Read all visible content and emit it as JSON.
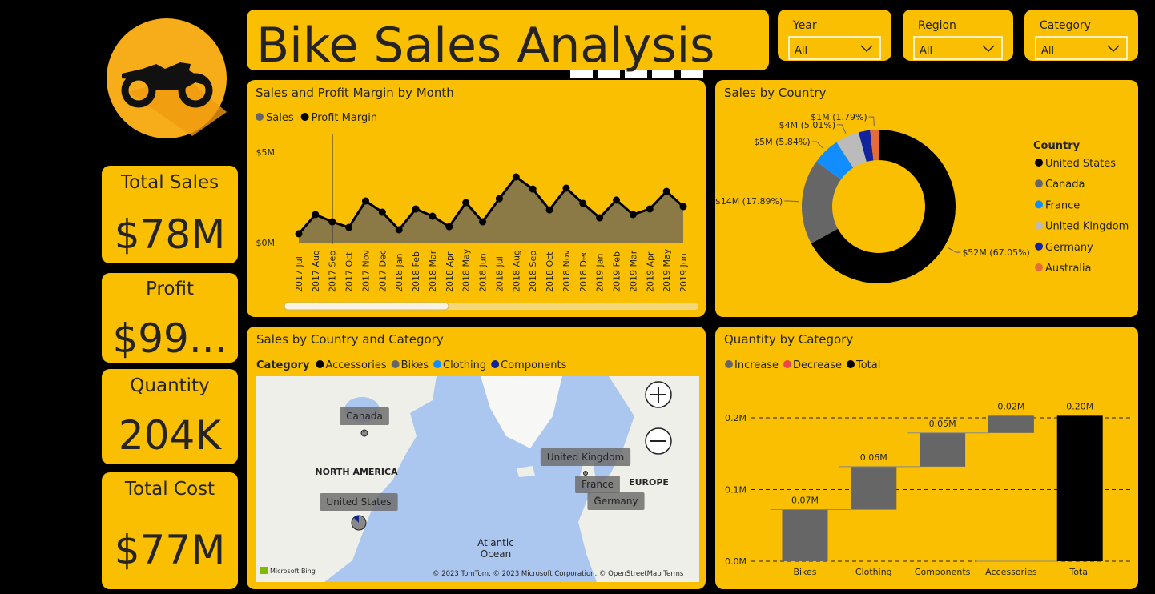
{
  "header": {
    "title": "Bike Sales Analysis"
  },
  "slicers": [
    {
      "label": "Year",
      "value": "All"
    },
    {
      "label": "Region",
      "value": "All"
    },
    {
      "label": "Category",
      "value": "All"
    }
  ],
  "kpis": [
    {
      "label": "Total Sales",
      "value": "$78M"
    },
    {
      "label": "Profit",
      "value": "$99..."
    },
    {
      "label": "Quantity",
      "value": "204K"
    },
    {
      "label": "Total Cost",
      "value": "$77M"
    }
  ],
  "chart_data": [
    {
      "type": "area",
      "title": "Sales and Profit Margin by Month",
      "categories": [
        "2017 Jul",
        "2017 Aug",
        "2017 Sep",
        "2017 Oct",
        "2017 Nov",
        "2017 Dec",
        "2018 Jan",
        "2018 Feb",
        "2018 Mar",
        "2018 Apr",
        "2018 May",
        "2018 Jun",
        "2018 Jul",
        "2018 Aug",
        "2018 Sep",
        "2018 Oct",
        "2018 Nov",
        "2018 Dec",
        "2019 Jan",
        "2019 Feb",
        "2019 Mar",
        "2019 Apr",
        "2019 May",
        "2019 Jun"
      ],
      "series": [
        {
          "name": "Sales",
          "color": "#8b7a45",
          "values": [
            0.49,
            1.55,
            1.15,
            0.84,
            2.3,
            1.68,
            0.71,
            1.86,
            1.46,
            0.88,
            2.21,
            1.15,
            2.43,
            3.63,
            2.96,
            1.81,
            3.01,
            2.17,
            1.37,
            2.35,
            1.55,
            1.86,
            2.83,
            1.99
          ]
        },
        {
          "name": "Profit Margin",
          "color": "#000000",
          "values": [
            0.49,
            1.55,
            1.15,
            0.84,
            2.3,
            1.68,
            0.71,
            1.86,
            1.46,
            0.88,
            2.21,
            1.15,
            2.43,
            3.63,
            2.96,
            1.81,
            3.01,
            2.17,
            1.37,
            2.35,
            1.55,
            1.86,
            2.83,
            1.99
          ]
        }
      ],
      "ylim": [
        0,
        6
      ],
      "yticks": [
        {
          "value": 0,
          "label": "$0M"
        },
        {
          "value": 5,
          "label": "$5M"
        }
      ]
    },
    {
      "type": "donut",
      "title": "Sales by Country",
      "legend_title": "Country",
      "categories": [
        "United States",
        "Canada",
        "France",
        "United Kingdom",
        "Germany",
        "Australia"
      ],
      "values": [
        67.05,
        17.89,
        5.84,
        5.01,
        2.42,
        1.79
      ],
      "value_labels": [
        "$52M (67.05%)",
        "$14M (17.89%)",
        "$5M (5.84%)",
        "$4M (5.01%)",
        null,
        "$1M (1.79%)"
      ],
      "colors": [
        "#000000",
        "#666666",
        "#118dff",
        "#bbbbbb",
        "#12239e",
        "#e66c37"
      ]
    },
    {
      "type": "map",
      "title": "Sales by Country and Category",
      "legend_title": "Category",
      "series": [
        {
          "name": "Accessories",
          "color": "#000000"
        },
        {
          "name": "Bikes",
          "color": "#666666"
        },
        {
          "name": "Clothing",
          "color": "#118dff"
        },
        {
          "name": "Components",
          "color": "#12239e"
        }
      ],
      "locations": [
        "Canada",
        "United Kingdom",
        "France",
        "United States",
        "Germany"
      ],
      "region_labels": [
        "NORTH AMERICA",
        "EUROPE",
        "Atlantic",
        "Ocean"
      ],
      "provider": "Microsoft Bing",
      "attribution": "© 2023 TomTom, © 2023 Microsoft Corporation, © OpenStreetMap  Terms"
    },
    {
      "type": "waterfall",
      "title": "Quantity by Category",
      "legend": [
        {
          "name": "Increase",
          "color": "#666666"
        },
        {
          "name": "Decrease",
          "color": "#e8464a"
        },
        {
          "name": "Total",
          "color": "#000000"
        }
      ],
      "categories": [
        "Bikes",
        "Clothing",
        "Components",
        "Accessories",
        "Total"
      ],
      "values": [
        0.072,
        0.06,
        0.047,
        0.024,
        0.203
      ],
      "value_labels": [
        "0.07M",
        "0.06M",
        "0.05M",
        "0.02M",
        "0.20M"
      ],
      "ylim": [
        0,
        0.23
      ],
      "yticks": [
        {
          "value": 0,
          "label": "0.0M"
        },
        {
          "value": 0.1,
          "label": "0.1M"
        },
        {
          "value": 0.2,
          "label": "0.2M"
        }
      ]
    }
  ]
}
